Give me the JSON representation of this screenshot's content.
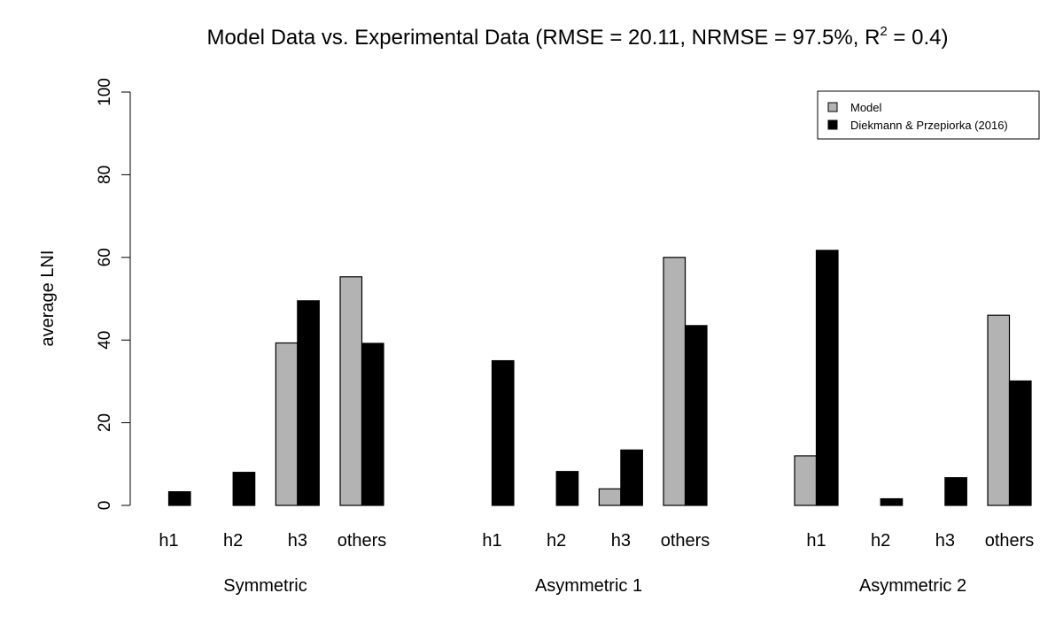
{
  "chart_data": {
    "type": "bar",
    "title": "Model Data vs. Experimental Data (RMSE = 20.11, NRMSE = 97.5%, R",
    "title_superscript": "2",
    "title_suffix": " = 0.4)",
    "ylabel": "average LNI",
    "xlabel": "",
    "ylim": [
      0,
      100
    ],
    "yticks": [
      "0",
      "20",
      "40",
      "60",
      "80",
      "100"
    ],
    "grid": false,
    "legend_position": "top-right",
    "series": [
      {
        "name": "Model",
        "color": "#b3b3b3"
      },
      {
        "name": "Diekmann & Przepiorka (2016)",
        "color": "#000000"
      }
    ],
    "groups": [
      {
        "name": "Symmetric",
        "categories": [
          "h1",
          "h2",
          "h3",
          "others"
        ],
        "model": [
          0,
          0,
          39.3,
          55.3
        ],
        "experiment": [
          3.3,
          8.0,
          49.5,
          39.2
        ]
      },
      {
        "name": "Asymmetric 1",
        "categories": [
          "h1",
          "h2",
          "h3",
          "others"
        ],
        "model": [
          0,
          0,
          4.0,
          60.0
        ],
        "experiment": [
          35.0,
          8.2,
          13.4,
          43.5
        ]
      },
      {
        "name": "Asymmetric 2",
        "categories": [
          "h1",
          "h2",
          "h3",
          "others"
        ],
        "model": [
          12.0,
          0,
          0,
          46.0
        ],
        "experiment": [
          61.7,
          1.6,
          6.7,
          30.1
        ]
      }
    ]
  }
}
